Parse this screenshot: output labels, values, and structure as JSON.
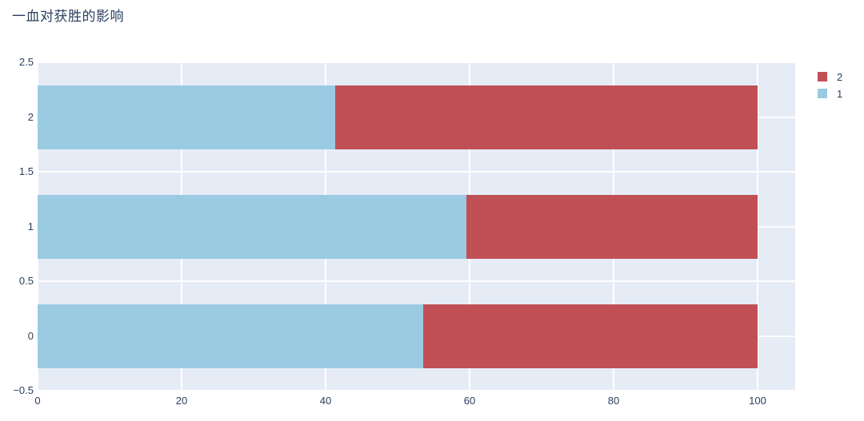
{
  "chart_data": {
    "type": "bar",
    "orientation": "horizontal",
    "barmode": "stack",
    "title": "一血对获胜的影响",
    "categories": [
      0,
      1,
      2
    ],
    "series": [
      {
        "name": "1",
        "color": "#9acbe2",
        "values": [
          53.6,
          59.5,
          41.3
        ]
      },
      {
        "name": "2",
        "color": "#c05056",
        "values": [
          46.4,
          40.5,
          58.7
        ]
      }
    ],
    "xlabel": "",
    "ylabel": "",
    "xlim": [
      0,
      105.3
    ],
    "ylim": [
      -0.5,
      2.5
    ],
    "x_ticks": [
      "0",
      "20",
      "40",
      "60",
      "80",
      "100"
    ],
    "x_tick_values": [
      0,
      20,
      40,
      60,
      80,
      100
    ],
    "y_ticks": [
      "2.5",
      "2",
      "1.5",
      "1",
      "0.5",
      "0",
      "−0.5"
    ],
    "y_tick_values": [
      2.5,
      2,
      1.5,
      1,
      0.5,
      0,
      -0.5
    ],
    "grid": true,
    "plot_bgcolor": "#e5ecf6",
    "paper_bgcolor": "#ffffff",
    "gridcolor": "#ffffff",
    "text_color": "#2a3f5f",
    "legend_position": "top-right"
  },
  "legend": {
    "items": [
      {
        "label": "2",
        "color": "#c05056"
      },
      {
        "label": "1",
        "color": "#9acbe2"
      }
    ]
  }
}
